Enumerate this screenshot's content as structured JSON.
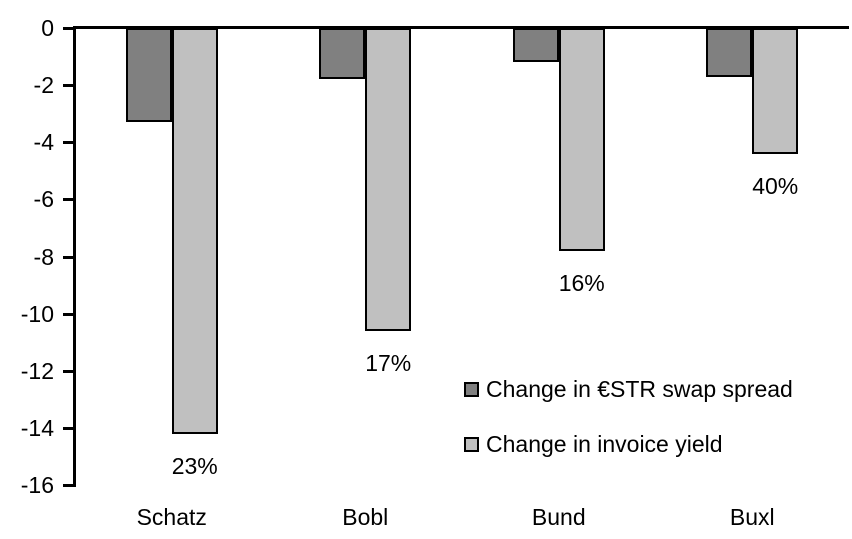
{
  "chart_data": {
    "type": "bar",
    "title": "",
    "xlabel": "",
    "ylabel": "",
    "categories": [
      "Schatz",
      "Bobl",
      "Bund",
      "Buxl"
    ],
    "series": [
      {
        "name": "Change in €STR swap spread",
        "color": "#808080",
        "values": [
          -3.3,
          -1.8,
          -1.2,
          -1.7
        ]
      },
      {
        "name": "Change in invoice yield",
        "color": "#c0c0c0",
        "values": [
          -14.2,
          -10.6,
          -7.8,
          -4.4
        ],
        "point_labels": [
          "23%",
          "17%",
          "16%",
          "40%"
        ]
      }
    ],
    "ylim": [
      -16,
      0
    ],
    "yticks": [
      0,
      -2,
      -4,
      -6,
      -8,
      -10,
      -12,
      -14,
      -16
    ],
    "grid": false,
    "legend_position": "inside-right",
    "axis_color": "#000000",
    "border_color": "#000000",
    "background": "#ffffff"
  }
}
